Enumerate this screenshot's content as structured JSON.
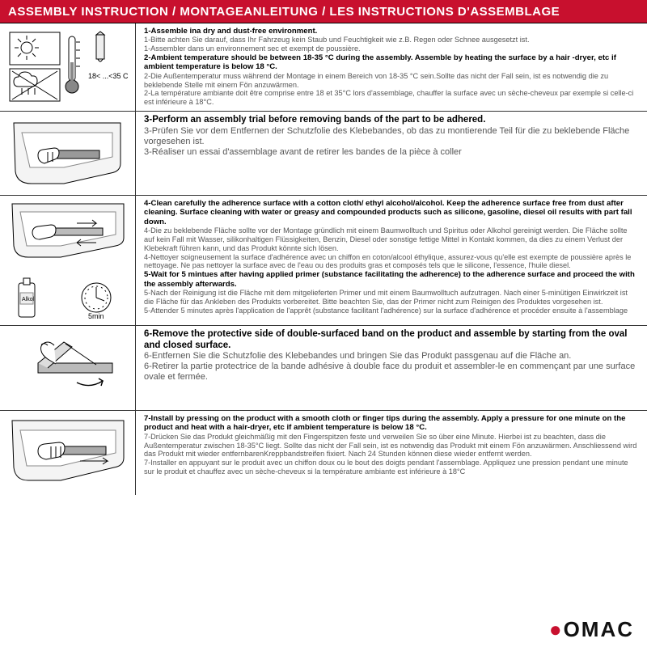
{
  "colors": {
    "header_bg": "#c8102e",
    "header_text": "#ffffff",
    "bold_text": "#000000",
    "body_text": "#555555",
    "border": "#333333",
    "brand_accent": "#c8102e"
  },
  "header": {
    "title": "ASSEMBLY INSTRUCTION / MONTAGEANLEITUNG / LES INSTRUCTIONS D'ASSEMBLAGE"
  },
  "steps": [
    {
      "icon": "temperature",
      "temp_label": "18< ...<35 C",
      "lines": [
        {
          "bold": true,
          "text": "1-Assemble ina dry and dust-free environment."
        },
        {
          "bold": false,
          "text": "1-Bitte achten Sie darauf, dass Ihr Fahrzeug kein Staub und Feuchtigkeit wie z.B. Regen oder Schnee ausgesetzt ist."
        },
        {
          "bold": false,
          "text": "1-Assembler dans un environnement sec et exempt de poussière."
        },
        {
          "bold": true,
          "text": "2-Ambient temperature should be between 18-35 °C  during the assembly. Assemble by heating the surface by a hair -dryer, etc if ambient temperature is below 18 °C."
        },
        {
          "bold": false,
          "text": "2-Die Außentemperatur muss während der Montage in einem Bereich von 18-35 °C  sein.Sollte das nicht der Fall sein, ist es notwendig die zu beklebende Stelle mit einem Fön anzuwärmen."
        },
        {
          "bold": false,
          "text": "2-La température ambiante doit être comprise entre 18 et 35°C lors d'assemblage, chauffer la surface avec un sèche-cheveux par exemple si celle-ci est inférieure à 18°C."
        }
      ]
    },
    {
      "icon": "trial",
      "bigger": true,
      "lines": [
        {
          "bold": true,
          "text": "3-Perform an assembly trial before removing bands of the part to be adhered."
        },
        {
          "bold": false,
          "text": "3-Prüfen Sie vor dem Entfernen der Schutzfolie des Klebebandes, ob das zu montierende Teil für die zu beklebende Fläche vorgesehen ist."
        },
        {
          "bold": false,
          "text": "3-Réaliser un essai d'assemblage avant de retirer les bandes de la pièce à coller"
        }
      ]
    },
    {
      "icon": "clean",
      "timer_label": "5min",
      "bottle_label": "Alkol",
      "lines": [
        {
          "bold": true,
          "text": "4-Clean carefully the adherence surface with a cotton cloth/ ethyl alcohol/alcohol. Keep the adherence surface free from dust after cleaning. Surface cleaning with water or greasy and compounded products such as silicone, gasoline, diesel oil results with part fall down."
        },
        {
          "bold": false,
          "text": "4-Die zu beklebende Fläche sollte vor der Montage gründlich mit einem Baumwolltuch und Spiritus oder Alkohol gereinigt werden. Die Fläche sollte auf kein Fall mit Wasser, silikonhaltigen Flüssigkeiten, Benzin, Diesel oder sonstige fettige Mittel in Kontakt kommen, da dies zu einem Verlust der Klebekraft führen kann, und das Produkt könnte sich lösen."
        },
        {
          "bold": false,
          "text": "4-Nettoyer soigneusement la surface d'adhérence avec un chiffon en coton/alcool éthylique, assurez-vous qu'elle est exempte de poussière après le nettoyage. Ne pas nettoyer la surface avec de l'eau ou des produits gras et composés tels que le silicone, l'essence, l'huile diesel."
        },
        {
          "bold": true,
          "text": "5-Wait for 5 mintues after having applied primer (substance facilitating the adherence) to the adherence surface and proceed the with the assembly afterwards."
        },
        {
          "bold": false,
          "text": "5-Nach der Reinigung ist die Fläche mit dem mitgelieferten Primer und mit einem Baumwolltuch aufzutragen. Nach einer 5-minütigen Einwirkzeit ist die Fläche für das Ankleben des Produkts vorbereitet. Bitte beachten Sie, das der Primer nicht zum Reinigen des Produktes vorgesehen ist."
        },
        {
          "bold": false,
          "text": "5-Attender 5 minutes après l'application de l'apprêt (substance facilitant l'adhérence) sur la surface d'adhérence et procéder ensuite à l'assemblage"
        }
      ]
    },
    {
      "icon": "peel",
      "bigger": true,
      "lines": [
        {
          "bold": true,
          "text": "6-Remove the protective side of double-surfaced band on the product and assemble by starting from the oval and closed surface."
        },
        {
          "bold": false,
          "text": "6-Entfernen Sie die Schutzfolie des Klebebandes und bringen Sie das Produkt passgenau auf die Fläche an."
        },
        {
          "bold": false,
          "text": "6-Retirer la partie protectrice de la bande adhésive à double face du produit et assembler-le en commençant par une surface ovale et fermée."
        }
      ]
    },
    {
      "icon": "press",
      "lines": [
        {
          "bold": true,
          "text": "7-Install by pressing on the product with a smooth cloth or finger tips during the assembly. Apply a pressure for one minute on the product and heat with a hair-dryer, etc if ambient temperature is below 18 °C."
        },
        {
          "bold": false,
          "text": "7-Drücken Sie das Produkt gleichmäßig mit den Fingerspitzen feste und verweilen Sie so über eine Minute. Hierbei ist zu beachten, dass die Außentemperatur zwischen 18-35°C liegt. Sollte das nicht der Fall sein, ist es notwendig das Produkt mit einem Fön anzuwärmen. Anschliessend wird das Produkt mit wieder entfernbarenKreppbandstreifen fixiert. Nach 24 Stunden können diese wieder entfernt werden."
        },
        {
          "bold": false,
          "text": "7-Installer en appuyant sur le produit avec un chiffon doux ou le bout des doigts pendant l'assemblage. Appliquez une pression pendant une minute sur le produit et chauffez avec un sèche-cheveux si la température ambiante est inférieure à 18°C"
        }
      ]
    }
  ],
  "footer": {
    "brand": "OMAC"
  }
}
